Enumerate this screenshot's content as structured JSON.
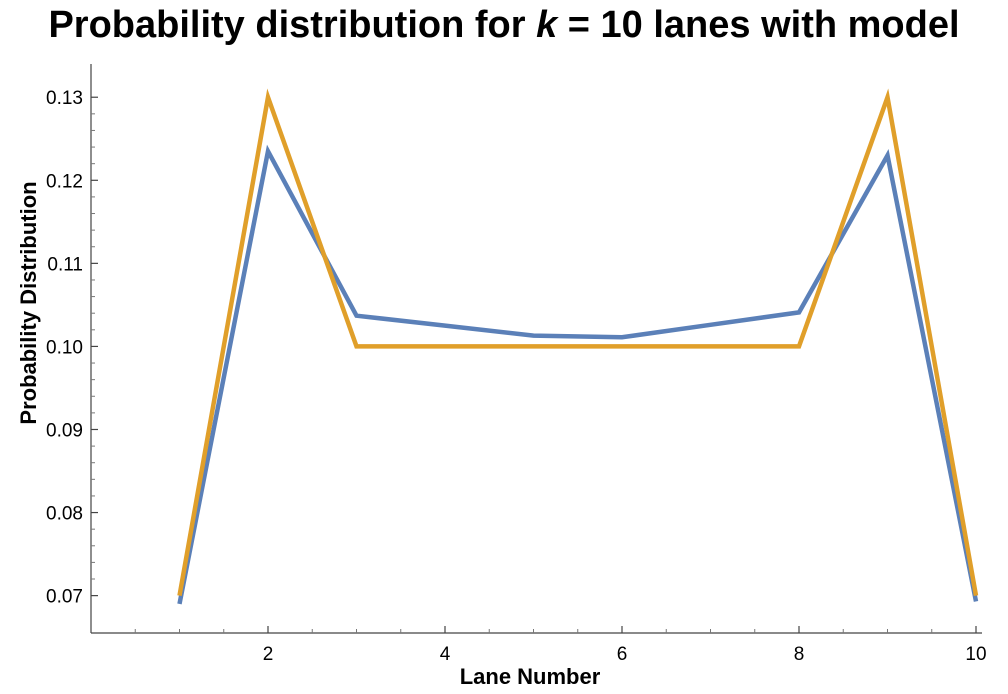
{
  "chart_data": {
    "type": "line",
    "title_parts": {
      "before": "Probability distribution for ",
      "italic": "k",
      "after": " = 10 lanes with model"
    },
    "xlabel": "Lane Number",
    "ylabel": "Probability Distribution",
    "xlim": [
      0,
      10
    ],
    "ylim": [
      0.0655,
      0.134
    ],
    "x_ticks_major": [
      2,
      4,
      6,
      8,
      10
    ],
    "x_ticks_minor": [
      0.5,
      1,
      1.5,
      2.5,
      3,
      3.5,
      4.5,
      5,
      5.5,
      6.5,
      7,
      7.5,
      8.5,
      9,
      9.5
    ],
    "y_ticks_major": [
      "0.07",
      "0.08",
      "0.09",
      "0.10",
      "0.11",
      "0.12",
      "0.13"
    ],
    "grid": false,
    "x": [
      1,
      2,
      3,
      4,
      5,
      6,
      7,
      8,
      9,
      10
    ],
    "series": [
      {
        "color": "#5b80b8",
        "values": [
          0.069,
          0.1235,
          0.1037,
          0.1025,
          0.1013,
          0.1011,
          0.1026,
          0.1041,
          0.123,
          0.0693
        ]
      },
      {
        "color": "#e09f2a",
        "values": [
          0.07,
          0.13,
          0.1,
          0.1,
          0.1,
          0.1,
          0.1,
          0.1,
          0.13,
          0.07
        ]
      }
    ]
  }
}
